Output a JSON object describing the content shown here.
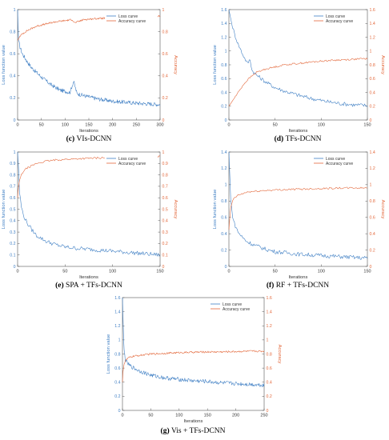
{
  "figure": {
    "colors": {
      "loss": "#3f7fc4",
      "accuracy": "#e3683b",
      "axis": "#555555",
      "grid": "none",
      "text": "#333333"
    }
  },
  "chart_data": [
    {
      "id": "c",
      "type": "line",
      "caption_letter": "(c)",
      "caption_text": "VIs-DCNN",
      "xlabel": "Iterations",
      "ylabel_left": "Loss function value",
      "ylabel_right": "Accuracy",
      "xlim": [
        0,
        300
      ],
      "ylim_left": [
        0,
        1.0
      ],
      "ylim_right": [
        0,
        1.0
      ],
      "xticks": [
        "0",
        "50",
        "100",
        "150",
        "200",
        "250",
        "300"
      ],
      "yticks_left": [
        "0",
        "0.2",
        "0.4",
        "0.6",
        "0.8",
        "1"
      ],
      "yticks_right": [
        "0",
        "0.2",
        "0.4",
        "0.6",
        "0.8",
        "1"
      ],
      "legend": {
        "position": "top-right",
        "entries": [
          "Loss curve",
          "Accuracy curve"
        ]
      },
      "series": [
        {
          "name": "Loss curve",
          "axis": "left",
          "x": [
            0,
            2,
            5,
            10,
            20,
            30,
            50,
            70,
            90,
            110,
            118,
            125,
            140,
            170,
            200,
            230,
            260,
            300
          ],
          "values": [
            1.0,
            0.72,
            0.66,
            0.6,
            0.53,
            0.47,
            0.39,
            0.32,
            0.27,
            0.25,
            0.35,
            0.24,
            0.22,
            0.19,
            0.17,
            0.16,
            0.15,
            0.14
          ]
        },
        {
          "name": "Accuracy curve",
          "axis": "right",
          "x": [
            0,
            5,
            10,
            20,
            40,
            60,
            80,
            100,
            115,
            120,
            140,
            170,
            200,
            230,
            260,
            300
          ],
          "values": [
            0.72,
            0.76,
            0.78,
            0.81,
            0.85,
            0.87,
            0.89,
            0.9,
            0.91,
            0.88,
            0.91,
            0.92,
            0.925,
            0.93,
            0.935,
            0.94
          ]
        }
      ]
    },
    {
      "id": "d",
      "type": "line",
      "caption_letter": "(d)",
      "caption_text": "TFs-DCNN",
      "xlabel": "Iterations",
      "ylabel_left": "Loss function value",
      "ylabel_right": "Accuracy",
      "xlim": [
        0,
        150
      ],
      "ylim_left": [
        0,
        1.6
      ],
      "ylim_right": [
        0,
        1.6
      ],
      "xticks": [
        "0",
        "50",
        "100",
        "150"
      ],
      "yticks_left": [
        "0",
        "0.2",
        "0.4",
        "0.6",
        "0.8",
        "1",
        "1.2",
        "1.4",
        "1.6"
      ],
      "yticks_right": [
        "0",
        "0.2",
        "0.4",
        "0.6",
        "0.8",
        "1",
        "1.2",
        "1.4",
        "1.6"
      ],
      "legend": {
        "position": "top-right",
        "entries": [
          "Loss curve",
          "Accuracy curve"
        ]
      },
      "series": [
        {
          "name": "Loss curve",
          "axis": "left",
          "x": [
            0,
            3,
            6,
            10,
            15,
            20,
            23,
            25,
            30,
            40,
            50,
            60,
            75,
            90,
            105,
            120,
            135,
            150
          ],
          "values": [
            1.6,
            1.4,
            1.25,
            1.1,
            0.95,
            0.82,
            0.88,
            0.72,
            0.65,
            0.55,
            0.47,
            0.42,
            0.36,
            0.31,
            0.27,
            0.24,
            0.22,
            0.21
          ]
        },
        {
          "name": "Accuracy curve",
          "axis": "right",
          "x": [
            0,
            5,
            10,
            15,
            20,
            25,
            30,
            40,
            50,
            60,
            75,
            90,
            105,
            120,
            135,
            150
          ],
          "values": [
            0.2,
            0.3,
            0.4,
            0.5,
            0.58,
            0.64,
            0.69,
            0.74,
            0.77,
            0.8,
            0.82,
            0.84,
            0.86,
            0.87,
            0.88,
            0.89
          ]
        }
      ]
    },
    {
      "id": "e",
      "type": "line",
      "caption_letter": "(e)",
      "caption_text": "SPA + TFs-DCNN",
      "xlabel": "Iterations",
      "ylabel_left": "Loss function value",
      "ylabel_right": "Accuracy",
      "xlim": [
        0,
        150
      ],
      "ylim_left": [
        0,
        1.0
      ],
      "ylim_right": [
        0,
        1.0
      ],
      "xticks": [
        "0",
        "50",
        "100",
        "150"
      ],
      "yticks_left": [
        "0",
        "0.1",
        "0.2",
        "0.3",
        "0.4",
        "0.5",
        "0.6",
        "0.7",
        "0.8",
        "0.9",
        "1"
      ],
      "yticks_right": [
        "0",
        "0.1",
        "0.2",
        "0.3",
        "0.4",
        "0.5",
        "0.6",
        "0.7",
        "0.8",
        "0.9",
        "1"
      ],
      "legend": {
        "position": "top-right",
        "entries": [
          "Loss curve",
          "Accuracy curve"
        ]
      },
      "series": [
        {
          "name": "Loss curve",
          "axis": "left",
          "x": [
            0,
            1,
            2,
            4,
            6,
            10,
            15,
            20,
            30,
            40,
            50,
            60,
            75,
            90,
            105,
            120,
            135,
            150
          ],
          "values": [
            1.0,
            0.85,
            0.65,
            0.52,
            0.45,
            0.38,
            0.32,
            0.27,
            0.22,
            0.19,
            0.17,
            0.16,
            0.15,
            0.14,
            0.13,
            0.12,
            0.11,
            0.1
          ]
        },
        {
          "name": "Accuracy curve",
          "axis": "right",
          "x": [
            0,
            1,
            2,
            4,
            6,
            10,
            15,
            20,
            30,
            40,
            50,
            60,
            75,
            90,
            105,
            120,
            135,
            150
          ],
          "values": [
            0.6,
            0.7,
            0.75,
            0.8,
            0.83,
            0.86,
            0.88,
            0.9,
            0.92,
            0.93,
            0.935,
            0.94,
            0.945,
            0.95,
            0.955,
            0.958,
            0.96,
            0.962
          ]
        }
      ]
    },
    {
      "id": "f",
      "type": "line",
      "caption_letter": "(f)",
      "caption_text": "RF + TFs-DCNN",
      "xlabel": "Iterations",
      "ylabel_left": "Loss function value",
      "ylabel_right": "Accuracy",
      "xlim": [
        0,
        150
      ],
      "ylim_left": [
        0,
        1.4
      ],
      "ylim_right": [
        0,
        1.4
      ],
      "xticks": [
        "0",
        "50",
        "100",
        "150"
      ],
      "yticks_left": [
        "0",
        "0.2",
        "0.4",
        "0.6",
        "0.8",
        "1",
        "1.2",
        "1.4"
      ],
      "yticks_right": [
        "0",
        "0.2",
        "0.4",
        "0.6",
        "0.8",
        "1",
        "1.2",
        "1.4"
      ],
      "legend": {
        "position": "top-right",
        "entries": [
          "Loss curve",
          "Accuracy curve"
        ]
      },
      "series": [
        {
          "name": "Loss curve",
          "axis": "left",
          "x": [
            0,
            1,
            2,
            4,
            6,
            10,
            15,
            20,
            30,
            40,
            50,
            60,
            75,
            90,
            105,
            120,
            135,
            150
          ],
          "values": [
            1.4,
            1.1,
            0.8,
            0.62,
            0.52,
            0.42,
            0.35,
            0.3,
            0.25,
            0.21,
            0.18,
            0.17,
            0.15,
            0.14,
            0.13,
            0.12,
            0.11,
            0.1
          ]
        },
        {
          "name": "Accuracy curve",
          "axis": "right",
          "x": [
            0,
            1,
            2,
            4,
            6,
            10,
            15,
            20,
            30,
            40,
            50,
            60,
            75,
            90,
            105,
            120,
            135,
            150
          ],
          "values": [
            0.45,
            0.6,
            0.72,
            0.8,
            0.84,
            0.87,
            0.89,
            0.91,
            0.92,
            0.93,
            0.935,
            0.94,
            0.945,
            0.95,
            0.955,
            0.958,
            0.96,
            0.96
          ]
        }
      ]
    },
    {
      "id": "g",
      "type": "line",
      "caption_letter": "(g)",
      "caption_text": "Vis + TFs-DCNN",
      "xlabel": "Iterations",
      "ylabel_left": "Loss function value",
      "ylabel_right": "Accuracy",
      "xlim": [
        0,
        250
      ],
      "ylim_left": [
        0,
        1.6
      ],
      "ylim_right": [
        0,
        1.6
      ],
      "xticks": [
        "0",
        "50",
        "100",
        "150",
        "200",
        "250"
      ],
      "yticks_left": [
        "0",
        "0.2",
        "0.4",
        "0.6",
        "0.8",
        "1",
        "1.2",
        "1.4",
        "1.6"
      ],
      "yticks_right": [
        "0",
        "0.2",
        "0.4",
        "0.6",
        "0.8",
        "1",
        "1.2",
        "1.4",
        "1.6"
      ],
      "legend": {
        "position": "top-right",
        "entries": [
          "Loss curve",
          "Accuracy curve"
        ]
      },
      "series": [
        {
          "name": "Loss curve",
          "axis": "left",
          "x": [
            0,
            1,
            2,
            3,
            5,
            8,
            12,
            20,
            30,
            50,
            75,
            100,
            125,
            150,
            175,
            200,
            225,
            250
          ],
          "values": [
            1.6,
            1.3,
            1.0,
            0.85,
            0.72,
            0.68,
            0.64,
            0.6,
            0.56,
            0.5,
            0.46,
            0.44,
            0.42,
            0.41,
            0.39,
            0.38,
            0.37,
            0.36
          ]
        },
        {
          "name": "Accuracy curve",
          "axis": "right",
          "x": [
            0,
            1,
            2,
            3,
            5,
            8,
            12,
            20,
            30,
            50,
            75,
            100,
            125,
            150,
            175,
            200,
            225,
            250
          ],
          "values": [
            0.4,
            0.55,
            0.62,
            0.66,
            0.7,
            0.73,
            0.75,
            0.77,
            0.78,
            0.8,
            0.81,
            0.82,
            0.825,
            0.83,
            0.83,
            0.835,
            0.84,
            0.84
          ]
        }
      ]
    }
  ]
}
